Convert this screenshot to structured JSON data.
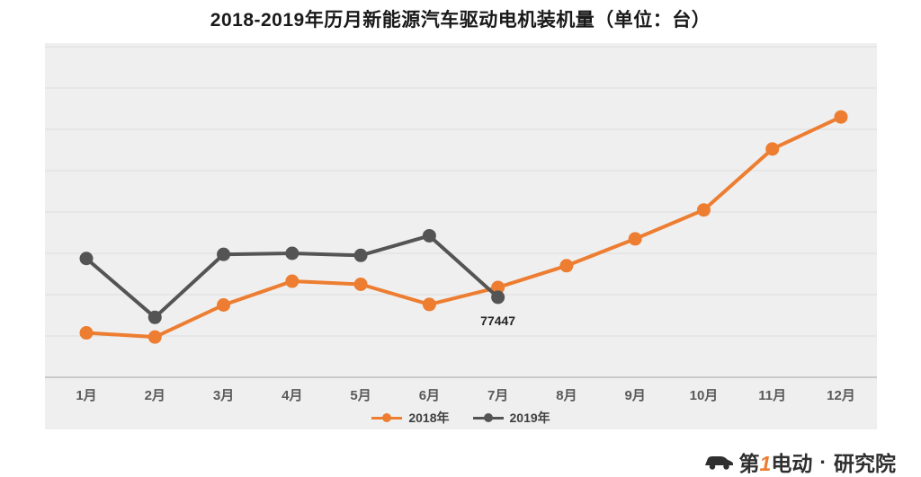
{
  "title": "2018-2019年历月新能源汽车驱动电机装机量（单位：台）",
  "watermark": {
    "brand_prefix": "第",
    "brand_number": "1",
    "brand_suffix": "电动",
    "separator": "·",
    "org": "研究院"
  },
  "chart_data": {
    "type": "line",
    "title": "2018-2019年历月新能源汽车驱动电机装机量（单位：台）",
    "categories": [
      "1月",
      "2月",
      "3月",
      "4月",
      "5月",
      "6月",
      "7月",
      "8月",
      "9月",
      "10月",
      "11月",
      "12月"
    ],
    "series": [
      {
        "name": "2018年",
        "color": "#ed7d31",
        "values": [
          43000,
          39000,
          70000,
          93000,
          90000,
          70500,
          87000,
          108000,
          134000,
          162000,
          221000,
          252000
        ]
      },
      {
        "name": "2019年",
        "color": "#545454",
        "values": [
          115000,
          58000,
          119000,
          120000,
          118000,
          137000,
          77447
        ]
      }
    ],
    "annotations": [
      {
        "series": "2019年",
        "category": "7月",
        "text": "77447"
      }
    ],
    "xlabel": "",
    "ylabel": "",
    "ylim": [
      0,
      320000
    ],
    "grid": true,
    "grid_interval": 40000,
    "legend_position": "bottom",
    "plot_bg": "#efefef",
    "gridline_color": "#dcdcdc",
    "axis_color": "#bdbdbd",
    "label_color": "#595959",
    "annotation_color": "#262626"
  }
}
